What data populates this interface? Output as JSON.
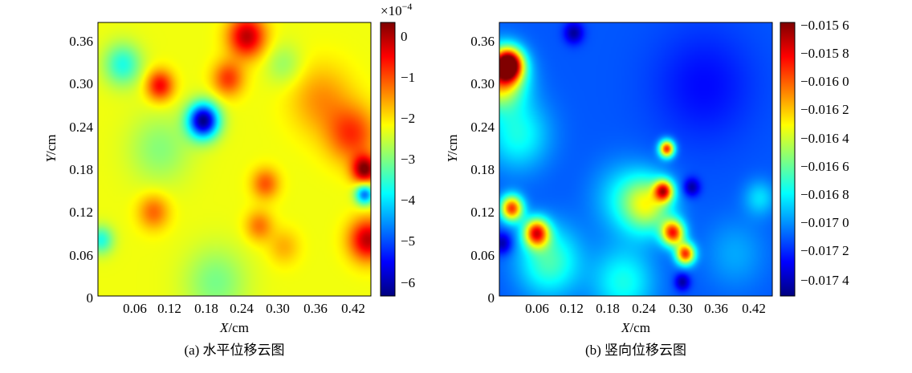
{
  "chart_data": [
    {
      "type": "heatmap",
      "title": "",
      "caption": "(a) 水平位移云图",
      "xlabel": {
        "var": "X",
        "unit": "/cm"
      },
      "ylabel": {
        "var": "Y",
        "unit": "/cm"
      },
      "xlim": [
        0,
        0.44
      ],
      "ylim": [
        0,
        0.39
      ],
      "xticks": [
        "0.06",
        "0.12",
        "0.18",
        "0.24",
        "0.30",
        "0.36",
        "0.42"
      ],
      "yticks": [
        "0",
        "0.06",
        "0.12",
        "0.18",
        "0.24",
        "0.30",
        "0.36"
      ],
      "grid": false,
      "colorbar": {
        "range": [
          -6.3,
          0.4
        ],
        "ticks": [
          "0",
          "−1",
          "−2",
          "−3",
          "−4",
          "−5",
          "−6"
        ],
        "tick_values": [
          0,
          -1,
          -2,
          -3,
          -4,
          -5,
          -6
        ],
        "multiplier": "×10",
        "exponent": "−4"
      },
      "background_level": -2.2,
      "features": [
        {
          "x": 0.24,
          "y": 0.37,
          "v": 0.0,
          "r": 0.03
        },
        {
          "x": 0.1,
          "y": 0.3,
          "v": -0.4,
          "r": 0.022
        },
        {
          "x": 0.21,
          "y": 0.31,
          "v": -0.8,
          "r": 0.025
        },
        {
          "x": 0.17,
          "y": 0.25,
          "v": -6.2,
          "r": 0.025
        },
        {
          "x": 0.41,
          "y": 0.23,
          "v": -0.8,
          "r": 0.04
        },
        {
          "x": 0.43,
          "y": 0.18,
          "v": 0.3,
          "r": 0.02
        },
        {
          "x": 0.43,
          "y": 0.145,
          "v": -4.8,
          "r": 0.015
        },
        {
          "x": 0.435,
          "y": 0.08,
          "v": 0.0,
          "r": 0.03
        },
        {
          "x": 0.27,
          "y": 0.16,
          "v": -1.0,
          "r": 0.022
        },
        {
          "x": 0.26,
          "y": 0.1,
          "v": -1.2,
          "r": 0.022
        },
        {
          "x": 0.09,
          "y": 0.12,
          "v": -1.1,
          "r": 0.025
        },
        {
          "x": 0.3,
          "y": 0.07,
          "v": -1.6,
          "r": 0.025
        },
        {
          "x": 0.04,
          "y": 0.33,
          "v": -3.6,
          "r": 0.03
        },
        {
          "x": 0.005,
          "y": 0.08,
          "v": -3.6,
          "r": 0.02
        },
        {
          "x": 0.19,
          "y": 0.02,
          "v": -3.0,
          "r": 0.05
        },
        {
          "x": 0.1,
          "y": 0.21,
          "v": -2.9,
          "r": 0.05
        },
        {
          "x": 0.3,
          "y": 0.33,
          "v": -2.8,
          "r": 0.03
        },
        {
          "x": 0.36,
          "y": 0.28,
          "v": -1.4,
          "r": 0.05
        }
      ]
    },
    {
      "type": "heatmap",
      "title": "",
      "caption": "(b) 竖向位移云图",
      "xlabel": {
        "var": "X",
        "unit": "/cm"
      },
      "ylabel": {
        "var": "Y",
        "unit": "/cm"
      },
      "xlim": [
        0,
        0.44
      ],
      "ylim": [
        0,
        0.39
      ],
      "xticks": [
        "0.06",
        "0.12",
        "0.18",
        "0.24",
        "0.30",
        "0.36",
        "0.42"
      ],
      "yticks": [
        "0",
        "0.06",
        "0.12",
        "0.18",
        "0.24",
        "0.30",
        "0.36"
      ],
      "grid": false,
      "colorbar": {
        "range": [
          -0.01745,
          -0.01555
        ],
        "ticks": [
          "−0.015 6",
          "−0.015 8",
          "−0.016 0",
          "−0.016 2",
          "−0.016 4",
          "−0.016 6",
          "−0.016 8",
          "−0.017 0",
          "−0.017 2",
          "−0.017 4"
        ],
        "tick_values": [
          -0.0156,
          -0.0158,
          -0.016,
          -0.0162,
          -0.0164,
          -0.0166,
          -0.0168,
          -0.017,
          -0.0172,
          -0.0174
        ]
      },
      "background_level": -0.01705,
      "features": [
        {
          "x": 0.015,
          "y": 0.33,
          "v": -0.01558,
          "r": 0.022
        },
        {
          "x": 0.0,
          "y": 0.31,
          "v": -0.0161,
          "r": 0.04
        },
        {
          "x": 0.03,
          "y": 0.23,
          "v": -0.0167,
          "r": 0.05
        },
        {
          "x": 0.02,
          "y": 0.125,
          "v": -0.0159,
          "r": 0.018
        },
        {
          "x": 0.06,
          "y": 0.09,
          "v": -0.0159,
          "r": 0.02
        },
        {
          "x": 0.005,
          "y": 0.075,
          "v": -0.0174,
          "r": 0.015
        },
        {
          "x": 0.08,
          "y": 0.05,
          "v": -0.0166,
          "r": 0.05
        },
        {
          "x": 0.27,
          "y": 0.21,
          "v": -0.01585,
          "r": 0.012
        },
        {
          "x": 0.265,
          "y": 0.15,
          "v": -0.016,
          "r": 0.015
        },
        {
          "x": 0.28,
          "y": 0.09,
          "v": -0.0159,
          "r": 0.018
        },
        {
          "x": 0.3,
          "y": 0.06,
          "v": -0.0159,
          "r": 0.015
        },
        {
          "x": 0.24,
          "y": 0.13,
          "v": -0.0164,
          "r": 0.04
        },
        {
          "x": 0.295,
          "y": 0.02,
          "v": -0.0174,
          "r": 0.012
        },
        {
          "x": 0.31,
          "y": 0.155,
          "v": -0.0174,
          "r": 0.013
        },
        {
          "x": 0.12,
          "y": 0.375,
          "v": -0.0174,
          "r": 0.015
        },
        {
          "x": 0.2,
          "y": 0.02,
          "v": -0.0167,
          "r": 0.05
        },
        {
          "x": 0.2,
          "y": 0.14,
          "v": -0.0168,
          "r": 0.05
        },
        {
          "x": 0.38,
          "y": 0.06,
          "v": -0.0169,
          "r": 0.05
        },
        {
          "x": 0.42,
          "y": 0.14,
          "v": -0.0168,
          "r": 0.025
        },
        {
          "x": 0.33,
          "y": 0.3,
          "v": -0.0172,
          "r": 0.08
        }
      ]
    }
  ]
}
